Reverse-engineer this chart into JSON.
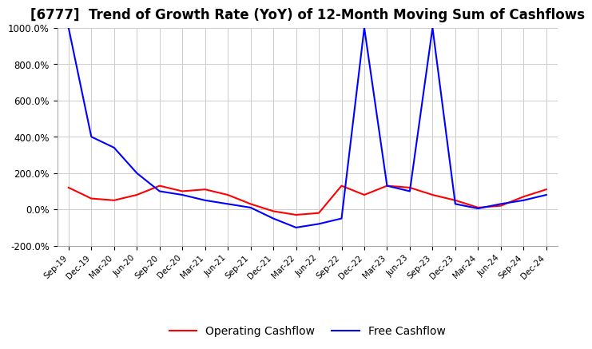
{
  "title": "[6777]  Trend of Growth Rate (YoY) of 12-Month Moving Sum of Cashflows",
  "title_fontsize": 12,
  "ylim": [
    -200,
    1000
  ],
  "yticks": [
    -200,
    0,
    200,
    400,
    600,
    800,
    1000
  ],
  "legend_labels": [
    "Operating Cashflow",
    "Free Cashflow"
  ],
  "legend_colors": [
    "#ff0000",
    "#0000ff"
  ],
  "operating_cashflow": {
    "values": [
      120,
      60,
      50,
      80,
      130,
      100,
      110,
      80,
      30,
      -10,
      -30,
      -20,
      130,
      80,
      130,
      120,
      80,
      50,
      10,
      20,
      70,
      110
    ]
  },
  "free_cashflow": {
    "values": [
      1000,
      400,
      340,
      200,
      100,
      80,
      50,
      30,
      10,
      -50,
      -100,
      -80,
      -50,
      1000,
      130,
      100,
      1000,
      30,
      5,
      30,
      50,
      80
    ]
  },
  "xtick_labels": [
    "Sep-19",
    "Dec-19",
    "Mar-20",
    "Jun-20",
    "Sep-20",
    "Dec-20",
    "Mar-21",
    "Jun-21",
    "Sep-21",
    "Dec-21",
    "Mar-22",
    "Jun-22",
    "Sep-22",
    "Dec-22",
    "Mar-23",
    "Jun-23",
    "Sep-23",
    "Dec-23",
    "Mar-24",
    "Jun-24",
    "Sep-24",
    "Dec-24"
  ],
  "background_color": "#ffffff",
  "grid_color": "#cccccc",
  "line_width": 1.5
}
